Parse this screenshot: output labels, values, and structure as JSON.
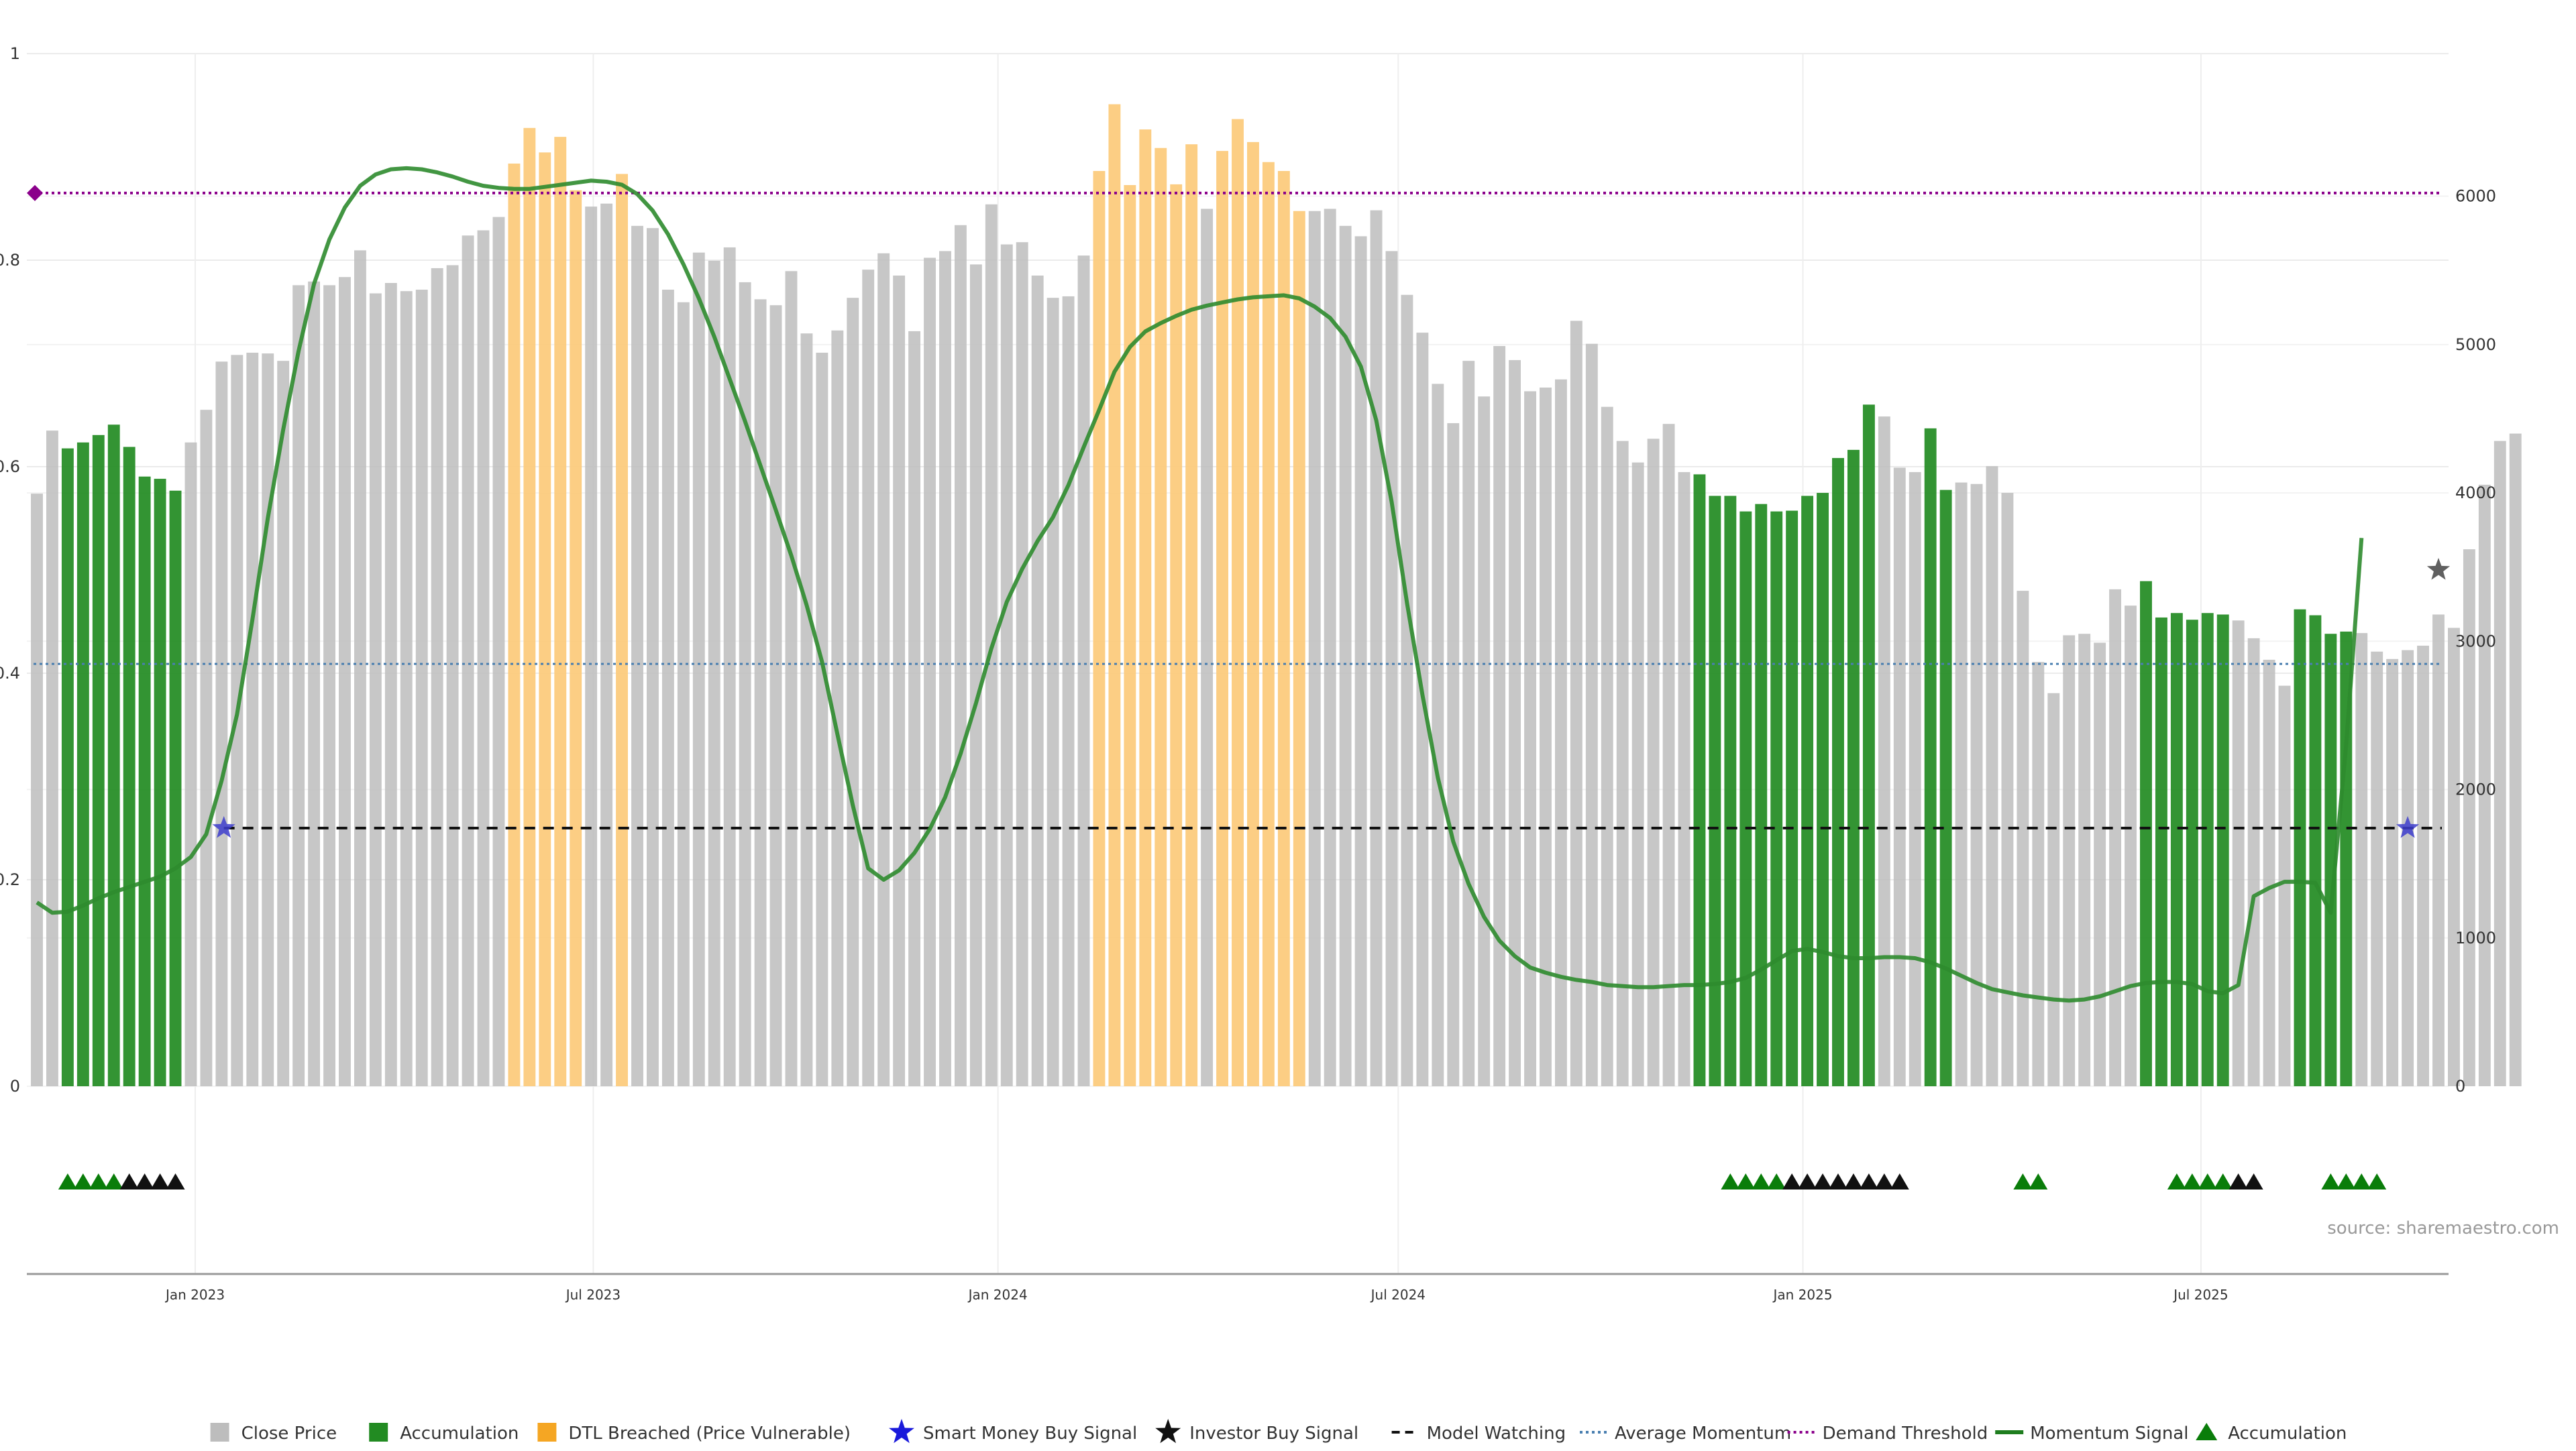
{
  "chart_data": {
    "type": "bar",
    "source_label": "source: sharemaestro.com",
    "left_axis": {
      "ylim": [
        0,
        1
      ],
      "ticks": [
        "0",
        "0.2",
        "0.4",
        "0.6",
        "0.8",
        "1"
      ]
    },
    "right_axis": {
      "ylim": [
        0,
        6961
      ],
      "ticks": [
        "0",
        "1000",
        "2000",
        "3000",
        "4000",
        "5000",
        "6000"
      ]
    },
    "x_axis": {
      "start": "2022-10-21",
      "end": "2025-10-17",
      "ticks": [
        {
          "label": "Jan 2023",
          "date": "2023-01-01"
        },
        {
          "label": "Jul 2023",
          "date": "2023-07-01"
        },
        {
          "label": "Jan 2024",
          "date": "2024-01-01"
        },
        {
          "label": "Jul 2024",
          "date": "2024-07-01"
        },
        {
          "label": "Jan 2025",
          "date": "2025-01-01"
        },
        {
          "label": "Jul 2025",
          "date": "2025-07-01"
        }
      ]
    },
    "grid": true,
    "legend": {
      "position": "bottom",
      "items": [
        {
          "label": "Close Price",
          "kind": "square",
          "color": "#bdbdbd"
        },
        {
          "label": "Accumulation",
          "kind": "square",
          "color": "#228b22"
        },
        {
          "label": "DTL Breached (Price Vulnerable)",
          "kind": "square",
          "color": "#f5a623"
        },
        {
          "label": "Smart Money Buy Signal",
          "kind": "star",
          "color": "#1a1adb"
        },
        {
          "label": "Investor Buy Signal",
          "kind": "star",
          "color": "#111111"
        },
        {
          "label": "Model Watching",
          "kind": "dash",
          "color": "#111111"
        },
        {
          "label": "Average Momentum",
          "kind": "dot",
          "color": "#4a7fb0"
        },
        {
          "label": "Demand Threshold",
          "kind": "dotpurple",
          "color": "#8b008b"
        },
        {
          "label": "Momentum Signal",
          "kind": "line",
          "color": "#1e7d1e"
        },
        {
          "label": "Accumulation",
          "kind": "triangle",
          "color": "#0a7d0a"
        }
      ]
    },
    "colors": {
      "close": "#bdbdbd",
      "accumulation": "#228b22",
      "dtl": "#fcca7a",
      "momentum": "#2e8b2e",
      "model_watching": "#111111",
      "average_momentum": "#4a7fb0",
      "demand_threshold": "#8b008b",
      "smart_money": "#3d3dcc",
      "investor": "#444444"
    },
    "bar_states": "GGGGGGGGGGGGGGGGGGGGGGGGGGGGGGGGGOOOOOGOGGGGGGGGGGGGGGGGGGGGGGGGGGGGGGGGGGGGGGGGGGGGGGGGGGGGGGGGGGGGGGGGGGGGGGGGGGGGGGGGGGGGGGGGGGGGGGGGGGGGGGGGGGGGGGGGGGGGGGGGGGGGGGGGGGGGGGGGGGGGGGGGGGGGGGGGGGG",
    "series": [
      {
        "name": "Close Price",
        "values": [
          3995,
          4420,
          4300,
          4340,
          4390,
          4460,
          4310,
          4110,
          4095,
          4015,
          4340,
          4560,
          4885,
          4930,
          4945,
          4940,
          4890,
          5400,
          5425,
          5400,
          5455,
          5635,
          5345,
          5415,
          5360,
          5370,
          5515,
          5535,
          5735,
          5770,
          5860,
          6220,
          6460,
          6295,
          6400,
          6040,
          5930,
          5950,
          6150,
          5800,
          5785,
          5370,
          5285,
          5620,
          5565,
          5655,
          5420,
          5305,
          5265,
          5495,
          5075,
          4945,
          5095,
          5315,
          5505,
          5615,
          5465,
          5090,
          5585,
          5630,
          5805,
          5540,
          5945,
          5675,
          5690,
          5465,
          5315,
          5325,
          5600,
          6170,
          6620,
          6075,
          6450,
          6325,
          6080,
          6350,
          5915,
          6305,
          6520,
          6365,
          6230,
          6170,
          5900,
          5900,
          5915,
          5800,
          5730,
          5905,
          5630,
          5335,
          5080,
          4735,
          4470,
          4890,
          4650,
          4990,
          4895,
          4685,
          4710,
          4765,
          5160,
          5005,
          4580,
          4350,
          4205,
          4365,
          4465,
          4140,
          4125,
          3980,
          3980,
          3875,
          3925,
          3875,
          3880,
          3980,
          4000,
          4235,
          4290,
          4595,
          4515,
          4170,
          4140,
          4435,
          4020,
          4070,
          4060,
          4180,
          4000,
          3340,
          2860,
          2650,
          3040,
          3050,
          2990,
          3350,
          3240,
          3405,
          3160,
          3190,
          3145,
          3190,
          3180,
          3140,
          3020,
          2875,
          2700,
          3215,
          3175,
          3050,
          3065,
          3055,
          2930,
          2880,
          2940,
          2970,
          3180,
          3090,
          3620,
          4055,
          4350,
          4400
        ],
        "bar_states": "GGGGGGGGGGGGGGGGGGGGGGGGGGGGGGGGGGGGGGGGGGGGGGGGGGGGGGGGGGGGGGGGGGGGGGGGGGGGGGGGGGGGGGGGGGGGGGGGGGGGGGGGGGGGGGGGGGGGGGGGGGGGGGGGGGGGGGGGGGGGGGGGGGGGGGGGGGGGGGGGGGGGGGGGGGGGG"
      },
      {
        "name": "Momentum Signal",
        "values": [
          0.178,
          0.168,
          0.169,
          0.175,
          0.182,
          0.188,
          0.193,
          0.198,
          0.203,
          0.211,
          0.222,
          0.244,
          0.296,
          0.36,
          0.452,
          0.55,
          0.636,
          0.712,
          0.777,
          0.82,
          0.851,
          0.872,
          0.883,
          0.888,
          0.889,
          0.888,
          0.885,
          0.881,
          0.876,
          0.872,
          0.87,
          0.869,
          0.869,
          0.871,
          0.873,
          0.875,
          0.877,
          0.876,
          0.873,
          0.864,
          0.848,
          0.825,
          0.796,
          0.763,
          0.726,
          0.685,
          0.644,
          0.601,
          0.558,
          0.514,
          0.466,
          0.411,
          0.341,
          0.272,
          0.211,
          0.2,
          0.209,
          0.226,
          0.249,
          0.28,
          0.322,
          0.371,
          0.424,
          0.469,
          0.501,
          0.528,
          0.551,
          0.582,
          0.619,
          0.655,
          0.692,
          0.716,
          0.731,
          0.739,
          0.746,
          0.752,
          0.756,
          0.759,
          0.762,
          0.764,
          0.765,
          0.766,
          0.763,
          0.755,
          0.744,
          0.726,
          0.697,
          0.645,
          0.566,
          0.468,
          0.379,
          0.299,
          0.237,
          0.196,
          0.164,
          0.141,
          0.126,
          0.115,
          0.11,
          0.106,
          0.103,
          0.101,
          0.098,
          0.097,
          0.096,
          0.096,
          0.097,
          0.098,
          0.098,
          0.099,
          0.101,
          0.105,
          0.113,
          0.122,
          0.131,
          0.133,
          0.13,
          0.126,
          0.124,
          0.124,
          0.125,
          0.125,
          0.124,
          0.12,
          0.114,
          0.107,
          0.1,
          0.094,
          0.091,
          0.088,
          0.086,
          0.084,
          0.083,
          0.084,
          0.087,
          0.092,
          0.097,
          0.1,
          0.101,
          0.101,
          0.099,
          0.092,
          0.09,
          0.098,
          0.184,
          0.192,
          0.198,
          0.198,
          0.197,
          0.168,
          0.33,
          0.531
        ]
      }
    ],
    "model_watching_level": 0.25,
    "average_momentum_level": 0.409,
    "demand_threshold_level": 0.865,
    "smart_money_signals": [
      {
        "date": "2023-01-14",
        "value": 0.25
      },
      {
        "date": "2025-10-03",
        "value": 0.25
      }
    ],
    "investor_signals": [
      {
        "date": "2025-10-17",
        "value": 0.5
      }
    ],
    "accumulation_markers": {
      "green_dates": [
        "2022-11-04",
        "2022-11-11",
        "2022-11-18",
        "2022-11-25",
        "2024-11-29",
        "2024-12-06",
        "2024-12-13",
        "2024-12-20",
        "2025-04-11",
        "2025-04-18",
        "2025-06-20",
        "2025-06-27",
        "2025-07-04",
        "2025-07-11",
        "2025-08-29",
        "2025-09-05",
        "2025-09-12",
        "2025-09-19"
      ],
      "black_dates": [
        "2022-12-02",
        "2022-12-09",
        "2022-12-16",
        "2022-12-23",
        "2024-12-27",
        "2025-01-03",
        "2025-01-10",
        "2025-01-17",
        "2025-01-24",
        "2025-01-31",
        "2025-02-07",
        "2025-02-14",
        "2025-07-18",
        "2025-07-25"
      ]
    }
  }
}
